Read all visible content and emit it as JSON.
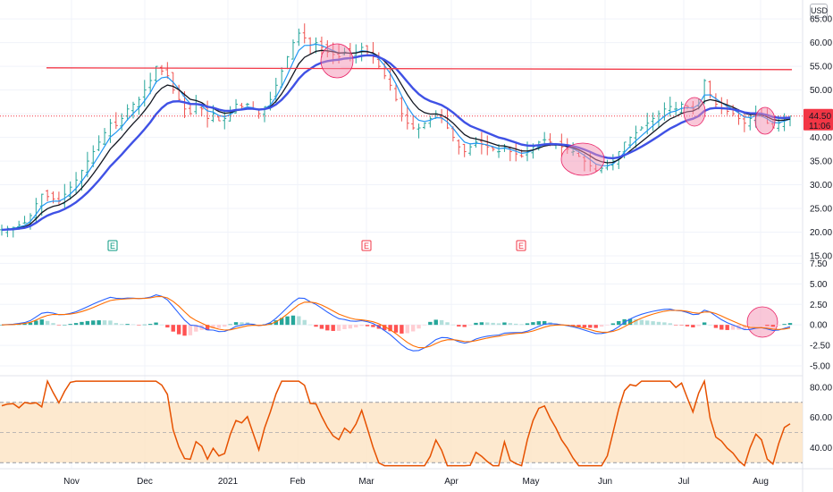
{
  "currency": "USD",
  "chart_data": [
    {
      "type": "candlestick",
      "pane": "price",
      "ylim": [
        15,
        69
      ],
      "y_ticks": [
        "65.00",
        "60.00",
        "55.00",
        "50.00",
        "45.00",
        "40.00",
        "35.00",
        "30.00",
        "25.00",
        "20.00",
        "15.00"
      ],
      "y_tick_values": [
        65,
        60,
        55,
        50,
        45,
        40,
        35,
        30,
        25,
        20,
        15
      ],
      "last_price_label": "44.50",
      "countdown_label": "11:06",
      "last_price": 44.5,
      "x_labels": [
        "Nov",
        "Dec",
        "2021",
        "Feb",
        "Mar",
        "Apr",
        "May",
        "Jun",
        "Jul",
        "Aug"
      ],
      "close_series": [
        20.5,
        20.8,
        21,
        21.5,
        22,
        23.5,
        26,
        28,
        27.5,
        27,
        26.5,
        28,
        29.5,
        31,
        33,
        35,
        37,
        39,
        41,
        43,
        42.5,
        44,
        46,
        47,
        48,
        50,
        52,
        55,
        54,
        53,
        50,
        48,
        46,
        45,
        47,
        46,
        44,
        45,
        43.5,
        44,
        45.5,
        47,
        46.5,
        47,
        46,
        45,
        46.5,
        48,
        51,
        54,
        57,
        60,
        62,
        61,
        59.5,
        60,
        59,
        58,
        57.5,
        57,
        58,
        57.5,
        58,
        59,
        58,
        57,
        55,
        53,
        51,
        48,
        45,
        43,
        42,
        42,
        43,
        44,
        45,
        44,
        42,
        40,
        38,
        37,
        38,
        39,
        38.5,
        38,
        37.5,
        37,
        38,
        37,
        36.5,
        36,
        37,
        38,
        39,
        39.5,
        39,
        38.5,
        38,
        37.5,
        37,
        36,
        35,
        34,
        33,
        33.5,
        34,
        35,
        37,
        39,
        40,
        41,
        42,
        43,
        44,
        45,
        46,
        46.5,
        46,
        47,
        46.5,
        46,
        48,
        52,
        49,
        47,
        46,
        45.5,
        45,
        44,
        43,
        44,
        45,
        44.5,
        43,
        42,
        43,
        44,
        44.5
      ],
      "ema_fast_color": "#2196f3",
      "ema_mid_color": "#131722",
      "ema_slow_color": "#3f51e5",
      "resistance_line": {
        "value": 54.5,
        "color": "#f23645"
      },
      "earnings_markers": [
        "E",
        "E",
        "E"
      ],
      "earnings_colors": [
        "#089981",
        "#f23645",
        "#f23645"
      ],
      "highlight_color": "#f48fb1"
    },
    {
      "type": "macd",
      "pane": "macd",
      "ylim": [
        -6.2,
        8.2
      ],
      "y_ticks": [
        "7.50",
        "5.00",
        "2.50",
        "0.00",
        "-2.50",
        "-5.00"
      ],
      "y_tick_values": [
        7.5,
        5,
        2.5,
        0,
        -2.5,
        -5
      ],
      "macd_color": "#2962ff",
      "signal_color": "#ff6d00",
      "hist_up_strong": "#26a69a",
      "hist_up_weak": "#b2dfdb",
      "hist_down_strong": "#ff5252",
      "hist_down_weak": "#ffcdd2"
    },
    {
      "type": "rsi",
      "pane": "rsi",
      "ylim": [
        26,
        87
      ],
      "y_ticks": [
        "80.00",
        "60.00",
        "40.00"
      ],
      "y_tick_values": [
        80,
        60,
        40
      ],
      "band_upper": 70,
      "band_lower": 30,
      "band_mid": 50,
      "line_color": "#e65100",
      "band_color": "#fde4c3"
    }
  ]
}
